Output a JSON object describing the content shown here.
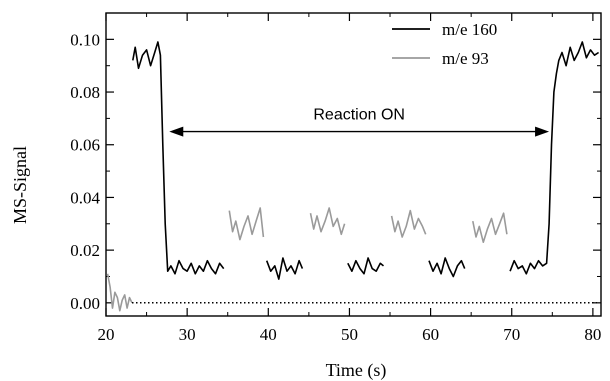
{
  "chart_data": {
    "type": "line",
    "title": "",
    "xlabel": "Time (s)",
    "ylabel": "MS-Signal",
    "xlim": [
      20,
      81
    ],
    "ylim": [
      -0.005,
      0.11
    ],
    "grid": false,
    "legend_position": "top-right",
    "x_ticks": [
      "20",
      "30",
      "40",
      "50",
      "60",
      "70",
      "80"
    ],
    "y_ticks": [
      "0.00",
      "0.02",
      "0.04",
      "0.06",
      "0.08",
      "0.10"
    ],
    "x_tick_values": [
      20,
      30,
      40,
      50,
      60,
      70,
      80
    ],
    "y_tick_values": [
      0.0,
      0.02,
      0.04,
      0.06,
      0.08,
      0.1
    ],
    "annotation": {
      "text": "Reaction ON",
      "x_start": 27.8,
      "x_end": 74.6,
      "y": 0.065
    },
    "series": [
      {
        "name": "m/e 160",
        "color": "#000000",
        "style": "solid",
        "x": [
          23.3,
          23.6,
          24.0,
          24.5,
          25.0,
          25.5,
          26.0,
          26.4,
          26.7,
          27.0,
          27.3,
          27.6,
          28.0,
          28.5,
          29.0,
          29.5,
          30.0,
          30.5,
          31.0,
          31.5,
          32.0,
          32.5,
          33.0,
          33.5,
          34.0,
          34.5,
          null,
          39.8,
          40.3,
          40.8,
          41.3,
          41.8,
          42.3,
          42.8,
          43.3,
          43.8,
          44.2,
          null,
          49.8,
          50.3,
          50.8,
          51.3,
          51.8,
          52.3,
          52.8,
          53.3,
          53.8,
          54.2,
          null,
          59.8,
          60.3,
          60.8,
          61.3,
          61.8,
          62.3,
          62.8,
          63.3,
          63.8,
          64.2,
          null,
          69.8,
          70.3,
          70.8,
          71.3,
          71.8,
          72.3,
          72.8,
          73.3,
          73.8,
          74.3,
          74.6,
          74.9,
          75.2,
          75.5,
          75.8,
          76.2,
          76.7,
          77.2,
          77.7,
          78.2,
          78.7,
          79.2,
          79.7,
          80.2,
          80.7
        ],
        "y": [
          0.092,
          0.097,
          0.089,
          0.094,
          0.096,
          0.09,
          0.095,
          0.099,
          0.094,
          0.06,
          0.03,
          0.012,
          0.014,
          0.011,
          0.016,
          0.013,
          0.012,
          0.015,
          0.011,
          0.014,
          0.012,
          0.016,
          0.013,
          0.011,
          0.015,
          0.013,
          null,
          0.016,
          0.012,
          0.014,
          0.009,
          0.017,
          0.012,
          0.014,
          0.011,
          0.016,
          0.013,
          null,
          0.015,
          0.012,
          0.016,
          0.013,
          0.011,
          0.017,
          0.013,
          0.012,
          0.015,
          0.014,
          null,
          0.016,
          0.012,
          0.015,
          0.011,
          0.017,
          0.013,
          0.01,
          0.014,
          0.016,
          0.013,
          null,
          0.012,
          0.016,
          0.013,
          0.014,
          0.011,
          0.015,
          0.013,
          0.016,
          0.014,
          0.015,
          0.03,
          0.06,
          0.08,
          0.087,
          0.092,
          0.095,
          0.09,
          0.097,
          0.092,
          0.095,
          0.099,
          0.093,
          0.096,
          0.094,
          0.095
        ]
      },
      {
        "name": "m/e 93",
        "color": "#9a9a9a",
        "style": "solid",
        "x": [
          20.2,
          20.5,
          20.8,
          21.1,
          21.4,
          21.7,
          22.0,
          22.3,
          22.6,
          22.9,
          23.2,
          null,
          35.2,
          35.6,
          36.0,
          36.5,
          37.0,
          37.5,
          38.0,
          38.5,
          39.0,
          39.4,
          null,
          45.2,
          45.6,
          46.0,
          46.5,
          47.0,
          47.5,
          48.0,
          48.5,
          49.0,
          49.4,
          null,
          55.2,
          55.6,
          56.0,
          56.5,
          57.0,
          57.5,
          58.0,
          58.5,
          59.0,
          59.4,
          null,
          65.2,
          65.6,
          66.0,
          66.5,
          67.0,
          67.5,
          68.0,
          68.5,
          69.0,
          69.4
        ],
        "y": [
          0.011,
          0.006,
          -0.002,
          0.004,
          0.002,
          -0.003,
          0.001,
          0.003,
          -0.002,
          0.002,
          0.0,
          null,
          0.035,
          0.027,
          0.031,
          0.024,
          0.029,
          0.033,
          0.026,
          0.031,
          0.036,
          0.025,
          null,
          0.034,
          0.028,
          0.033,
          0.027,
          0.031,
          0.036,
          0.029,
          0.032,
          0.026,
          0.03,
          null,
          0.033,
          0.027,
          0.031,
          0.025,
          0.029,
          0.035,
          0.028,
          0.032,
          0.029,
          0.026,
          null,
          0.031,
          0.025,
          0.029,
          0.023,
          0.028,
          0.032,
          0.026,
          0.03,
          0.034,
          0.026
        ]
      },
      {
        "name": "",
        "color": "#000000",
        "style": "dotted",
        "x": [
          23.2,
          80.5
        ],
        "y": [
          0.0,
          0.0
        ]
      }
    ]
  }
}
